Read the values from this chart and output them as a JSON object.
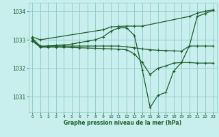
{
  "xlabel": "Graphe pression niveau de la mer (hPa)",
  "background_color": "#c8eeed",
  "grid_color": "#89c8c8",
  "line_color": "#1a5c28",
  "xlim": [
    -0.5,
    23.5
  ],
  "ylim": [
    1030.45,
    1034.3
  ],
  "yticks": [
    1031,
    1032,
    1033,
    1034
  ],
  "xticks": [
    0,
    1,
    2,
    3,
    4,
    5,
    6,
    7,
    8,
    9,
    10,
    11,
    12,
    13,
    14,
    15,
    16,
    17,
    18,
    19,
    20,
    21,
    22,
    23
  ],
  "lines": [
    {
      "x": [
        0,
        1,
        9,
        10,
        11,
        12,
        13,
        14,
        20,
        21,
        22,
        23
      ],
      "y": [
        1033.1,
        1033.0,
        1033.35,
        1033.45,
        1033.47,
        1033.48,
        1033.48,
        1033.48,
        1033.82,
        1033.93,
        1034.0,
        1034.05
      ]
    },
    {
      "x": [
        0,
        1,
        2,
        3,
        4,
        5,
        6,
        7,
        8,
        9,
        10,
        11,
        12,
        13,
        14,
        15,
        16,
        17,
        18,
        19,
        20,
        21,
        22,
        23
      ],
      "y": [
        1033.05,
        1032.78,
        1032.78,
        1032.78,
        1032.78,
        1032.78,
        1032.78,
        1032.78,
        1032.78,
        1032.78,
        1032.78,
        1032.78,
        1032.75,
        1032.72,
        1032.68,
        1032.65,
        1032.63,
        1032.62,
        1032.61,
        1032.6,
        1032.78,
        1032.78,
        1032.78,
        1032.78
      ]
    },
    {
      "x": [
        0,
        1,
        2,
        3,
        4,
        5,
        6,
        7,
        8,
        9,
        10,
        11,
        12,
        13,
        14,
        15,
        16,
        17,
        18,
        19,
        20,
        21,
        22,
        23
      ],
      "y": [
        1033.0,
        1032.76,
        1032.78,
        1032.8,
        1032.82,
        1032.85,
        1032.9,
        1032.95,
        1033.0,
        1033.1,
        1033.3,
        1033.42,
        1033.42,
        1033.15,
        1031.95,
        1030.62,
        1031.05,
        1031.15,
        1031.9,
        1032.2,
        1032.78,
        1033.82,
        1033.92,
        1034.03
      ]
    },
    {
      "x": [
        0,
        1,
        2,
        3,
        4,
        5,
        6,
        7,
        8,
        9,
        10,
        11,
        12,
        13,
        14,
        15,
        16,
        17,
        18,
        19,
        20,
        21,
        22,
        23
      ],
      "y": [
        1032.95,
        1032.74,
        1032.74,
        1032.74,
        1032.74,
        1032.73,
        1032.72,
        1032.71,
        1032.7,
        1032.69,
        1032.68,
        1032.67,
        1032.65,
        1032.5,
        1032.2,
        1031.78,
        1032.0,
        1032.08,
        1032.18,
        1032.2,
        1032.2,
        1032.18,
        1032.18,
        1032.18
      ]
    }
  ]
}
